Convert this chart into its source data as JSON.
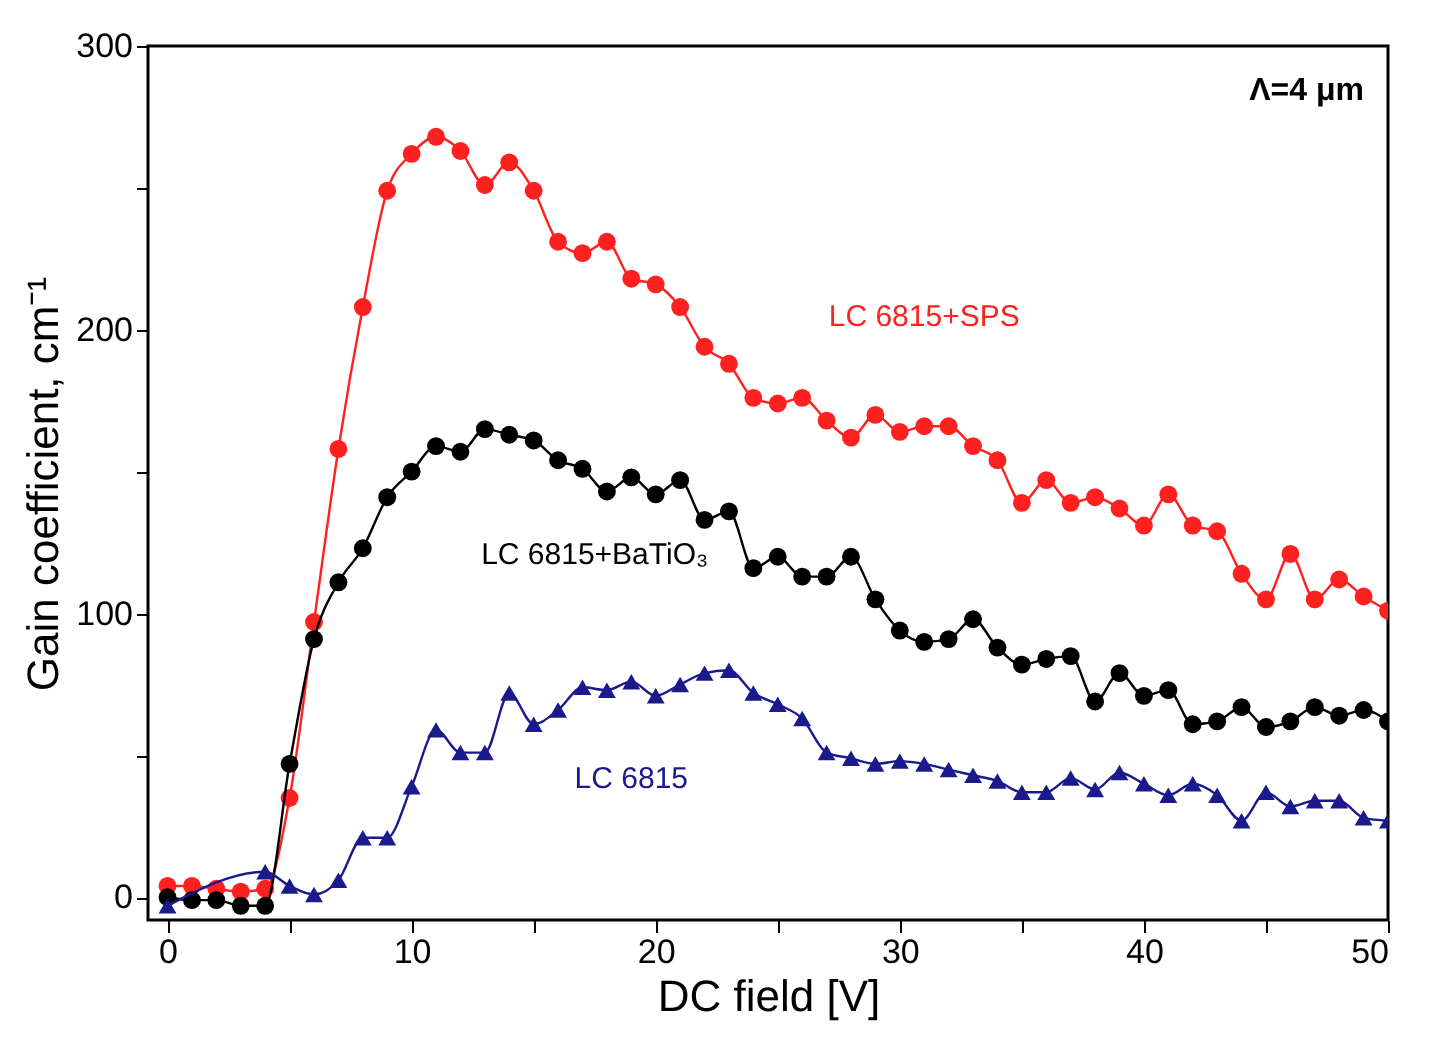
{
  "chart_data": {
    "type": "line",
    "xlabel": "DC field [V]",
    "ylabel": "Gain coefficient, cm⁻¹",
    "x": [
      0,
      1,
      2,
      3,
      4,
      5,
      6,
      7,
      8,
      9,
      10,
      11,
      12,
      13,
      14,
      15,
      16,
      17,
      18,
      19,
      20,
      21,
      22,
      23,
      24,
      25,
      26,
      27,
      28,
      29,
      30,
      31,
      32,
      33,
      34,
      35,
      36,
      37,
      38,
      39,
      40,
      41,
      42,
      43,
      44,
      45,
      46,
      47,
      48,
      49,
      50
    ],
    "xlim": [
      -0.8,
      50
    ],
    "ylim": [
      -8,
      300
    ],
    "xticks": [
      0,
      {
        "value": 5,
        "label": null
      },
      10,
      {
        "value": 15,
        "label": null
      },
      20,
      {
        "value": 25,
        "label": null
      },
      30,
      {
        "value": 35,
        "label": null
      },
      40,
      {
        "value": 45,
        "label": null
      },
      50
    ],
    "yticks": [
      0,
      {
        "value": 50,
        "label": null
      },
      100,
      {
        "value": 150,
        "label": null
      },
      200,
      {
        "value": 250,
        "label": null
      },
      300
    ],
    "grid": false,
    "legend": false,
    "series": [
      {
        "name": "LC 6815+SPS",
        "color": "#ff2020",
        "marker": "circle",
        "values": [
          4,
          4,
          3,
          2,
          3,
          35,
          97,
          158,
          208,
          249,
          262,
          268,
          263,
          251,
          259,
          249,
          231,
          227,
          231,
          218,
          216,
          208,
          194,
          188,
          176,
          174,
          176,
          168,
          162,
          170,
          164,
          166,
          166,
          159,
          154,
          139,
          147,
          139,
          141,
          137,
          131,
          142,
          131,
          129,
          114,
          105,
          121,
          105,
          112,
          106,
          101
        ]
      },
      {
        "name": "LC 6815+BaTiO₃",
        "color": "#000000",
        "marker": "circle",
        "values": [
          0,
          -1,
          -1,
          -3,
          -3,
          47,
          91,
          111,
          123,
          141,
          150,
          159,
          157,
          165,
          163,
          161,
          154,
          151,
          143,
          148,
          142,
          147,
          133,
          136,
          116,
          120,
          113,
          113,
          120,
          105,
          94,
          90,
          91,
          98,
          88,
          82,
          84,
          85,
          69,
          79,
          71,
          73,
          61,
          62,
          67,
          60,
          62,
          67,
          64,
          66,
          62
        ]
      },
      {
        "name": "LC 6815",
        "color": "#1a1a8c",
        "marker": "triangle",
        "values": [
          -3,
          null,
          null,
          null,
          9,
          4,
          1,
          6,
          21,
          21,
          39,
          59,
          51,
          51,
          72,
          61,
          66,
          74,
          73,
          76,
          71,
          75,
          79,
          80,
          72,
          68,
          63,
          51,
          49,
          47,
          48,
          47,
          45,
          43,
          41,
          37,
          37,
          42,
          38,
          44,
          40,
          36,
          40,
          36,
          27,
          37,
          32,
          34,
          34,
          28,
          27
        ]
      }
    ],
    "annotations": [
      "Λ=4 μm"
    ]
  }
}
